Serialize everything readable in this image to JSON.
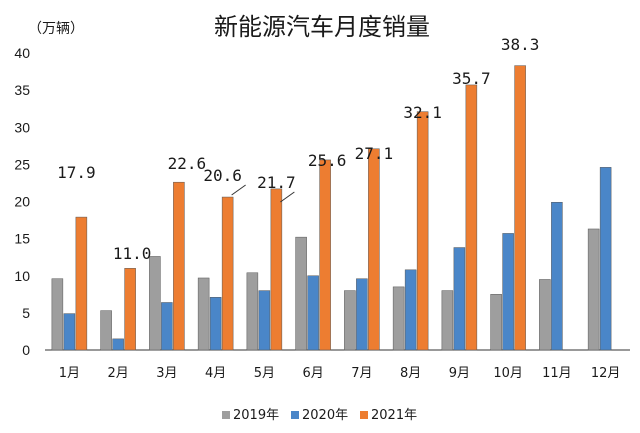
{
  "chart_data": {
    "type": "bar",
    "title": "新能源汽车月度销量",
    "unit_label": "（万辆）",
    "categories": [
      "1月",
      "2月",
      "3月",
      "4月",
      "5月",
      "6月",
      "7月",
      "8月",
      "9月",
      "10月",
      "11月",
      "12月"
    ],
    "series": [
      {
        "name": "2019年",
        "color": "#9e9e9e",
        "values": [
          9.6,
          5.3,
          12.6,
          9.7,
          10.4,
          15.2,
          8.0,
          8.5,
          8.0,
          7.5,
          9.5,
          16.3
        ]
      },
      {
        "name": "2020年",
        "color": "#4a86c8",
        "values": [
          4.9,
          1.5,
          6.4,
          7.1,
          8.0,
          10.0,
          9.6,
          10.8,
          13.8,
          15.7,
          19.9,
          24.6
        ]
      },
      {
        "name": "2021年",
        "color": "#ed7d31",
        "values": [
          17.9,
          11.0,
          22.6,
          20.6,
          21.7,
          25.6,
          27.1,
          32.1,
          35.7,
          38.3,
          null,
          null
        ]
      }
    ],
    "data_labels": [
      "17.9",
      "11.0",
      "22.6",
      "20.6",
      "21.7",
      "25.6",
      "27.1",
      "32.1",
      "35.7",
      "38.3"
    ],
    "yticks": [
      "0",
      "5",
      "10",
      "15",
      "20",
      "25",
      "30",
      "35",
      "40"
    ],
    "ylim": [
      0,
      40
    ],
    "grid": false,
    "legend_position": "bottom"
  }
}
